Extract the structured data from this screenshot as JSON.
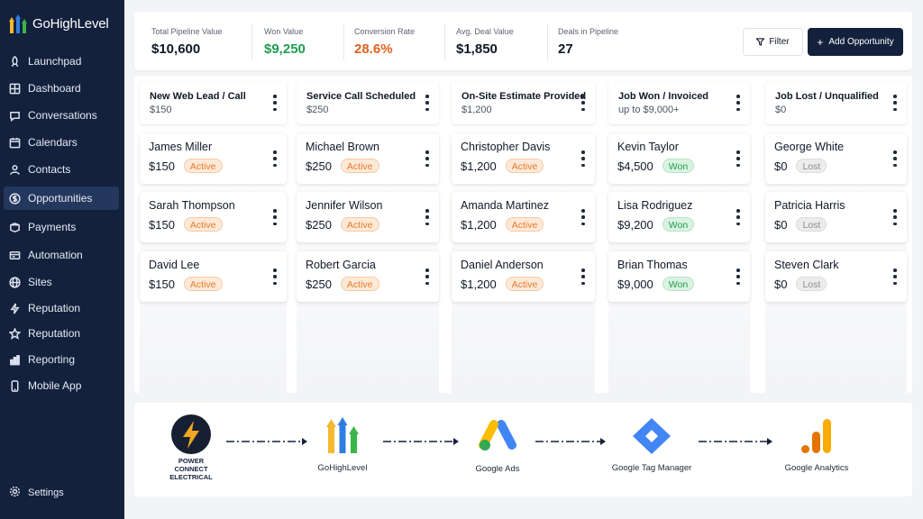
{
  "brand": {
    "name": "GoHighLevel"
  },
  "sidebar": {
    "items": [
      {
        "label": "Launchpad",
        "icon": "rocket-icon",
        "active": false
      },
      {
        "label": "Dashboard",
        "icon": "dashboard-icon",
        "active": false
      },
      {
        "label": "Conversations",
        "icon": "chat-icon",
        "active": false
      },
      {
        "label": "Calendars",
        "icon": "calendar-icon",
        "active": false
      },
      {
        "label": "Contacts",
        "icon": "person-icon",
        "active": false
      },
      {
        "label": "Opportunities",
        "icon": "dollar-icon",
        "active": true
      },
      {
        "label": "Payments",
        "icon": "payments-icon",
        "active": false
      },
      {
        "label": "Automation",
        "icon": "automation-icon",
        "active": false
      },
      {
        "label": "Sites",
        "icon": "globe-icon",
        "active": false
      },
      {
        "label": "Reputation",
        "icon": "lightning-icon",
        "active": false
      },
      {
        "label": "Reputation",
        "icon": "star-icon",
        "active": false
      },
      {
        "label": "Reporting",
        "icon": "bar-chart-icon",
        "active": false
      },
      {
        "label": "Mobile App",
        "icon": "phone-icon",
        "active": false
      }
    ],
    "settings_label": "Settings"
  },
  "stats": [
    {
      "label": "Total Pipeline Value",
      "value": "$10,600",
      "color": "#111827"
    },
    {
      "label": "Won Value",
      "value": "$9,250",
      "color": "#1f9d4f"
    },
    {
      "label": "Conversion Rate",
      "value": "28.6%",
      "color": "#e0621f"
    },
    {
      "label": "Avg. Deal Value",
      "value": "$1,850",
      "color": "#111827"
    },
    {
      "label": "Deals in Pipeline",
      "value": "27",
      "color": "#111827"
    }
  ],
  "toolbar": {
    "filter_label": "Filter",
    "add_label": "Add Opportunity"
  },
  "columns": [
    {
      "title": "New Web Lead / Call",
      "subtitle": "$150",
      "cards": [
        {
          "name": "James Miller",
          "amount": "$150",
          "status": "Active"
        },
        {
          "name": "Sarah Thompson",
          "amount": "$150",
          "status": "Active"
        },
        {
          "name": "David Lee",
          "amount": "$150",
          "status": "Active"
        }
      ]
    },
    {
      "title": "Service Call Scheduled",
      "subtitle": "$250",
      "cards": [
        {
          "name": "Michael Brown",
          "amount": "$250",
          "status": "Active"
        },
        {
          "name": "Jennifer Wilson",
          "amount": "$250",
          "status": "Active"
        },
        {
          "name": "Robert Garcia",
          "amount": "$250",
          "status": "Active"
        }
      ]
    },
    {
      "title": "On-Site Estimate Provided",
      "subtitle": "$1,200",
      "cards": [
        {
          "name": "Christopher Davis",
          "amount": "$1,200",
          "status": "Active"
        },
        {
          "name": "Amanda Martinez",
          "amount": "$1,200",
          "status": "Active"
        },
        {
          "name": "Daniel Anderson",
          "amount": "$1,200",
          "status": "Active"
        }
      ]
    },
    {
      "title": "Job Won / Invoiced",
      "subtitle": "up to $9,000+",
      "cards": [
        {
          "name": "Kevin Taylor",
          "amount": "$4,500",
          "status": "Won"
        },
        {
          "name": "Lisa Rodriguez",
          "amount": "$9,200",
          "status": "Won"
        },
        {
          "name": "Brian Thomas",
          "amount": "$9,000",
          "status": "Won"
        }
      ]
    },
    {
      "title": "Job Lost / Unqualified",
      "subtitle": "$0",
      "cards": [
        {
          "name": "George White",
          "amount": "$0",
          "status": "Lost"
        },
        {
          "name": "Patricia Harris",
          "amount": "$0",
          "status": "Lost"
        },
        {
          "name": "Steven Clark",
          "amount": "$0",
          "status": "Lost"
        }
      ]
    }
  ],
  "integrations": {
    "power_connect": {
      "line1": "POWER",
      "line2": "CONNECT",
      "line3": "ELECTRICAL"
    },
    "gohighlevel": "GoHighLevel",
    "google_ads": "Google Ads",
    "google_tag_manager": "Google Tag Manager",
    "google_analytics": "Google Analytics"
  },
  "colors": {
    "sidebar_bg": "#14213d",
    "active_badge": "#e87b2a",
    "won_badge": "#1f9d4f",
    "lost_badge": "#8c8c8c"
  }
}
